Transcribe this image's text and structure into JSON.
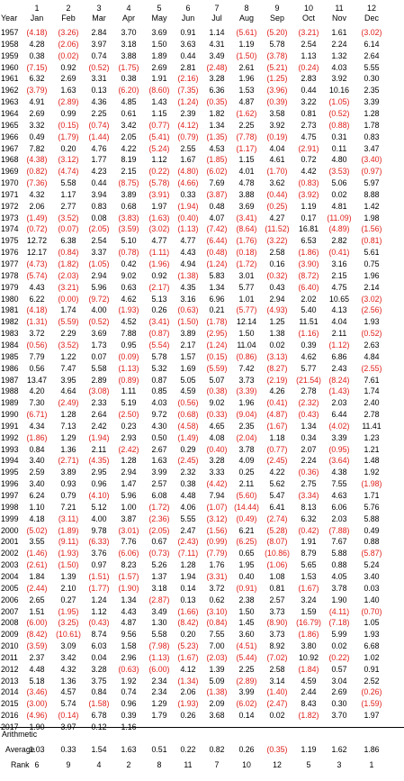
{
  "headers": {
    "year_label": "Year",
    "month_numbers": [
      "1",
      "2",
      "3",
      "4",
      "5",
      "6",
      "7",
      "8",
      "9",
      "10",
      "11",
      "12"
    ],
    "month_names": [
      "Jan",
      "Feb",
      "Mar",
      "Apr",
      "May",
      "Jun",
      "Jul",
      "Aug",
      "Sep",
      "Oct",
      "Nov",
      "Dec"
    ]
  },
  "rows": [
    [
      "1957",
      "(4.18)",
      "(3.26)",
      "2.84",
      "3.70",
      "3.69",
      "0.91",
      "1.14",
      "(5.61)",
      "(5.20)",
      "(3.21)",
      "1.61",
      "(3.02)"
    ],
    [
      "1958",
      "4.28",
      "(2.06)",
      "3.97",
      "3.18",
      "1.50",
      "3.63",
      "4.31",
      "1.19",
      "5.78",
      "2.54",
      "2.24",
      "6.14"
    ],
    [
      "1959",
      "0.38",
      "(0.02)",
      "0.74",
      "3.88",
      "1.89",
      "0.44",
      "3.49",
      "(1.50)",
      "(3.78)",
      "1.13",
      "1.32",
      "2.64"
    ],
    [
      "1960",
      "(7.15)",
      "0.92",
      "(0.52)",
      "(1.75)",
      "2.69",
      "2.81",
      "(2.48)",
      "2.61",
      "(5.21)",
      "(0.24)",
      "4.03",
      "5.55"
    ],
    [
      "1961",
      "6.32",
      "2.69",
      "3.31",
      "0.38",
      "1.91",
      "(2.16)",
      "3.28",
      "1.96",
      "(1.25)",
      "2.83",
      "3.92",
      "0.30"
    ],
    [
      "1962",
      "(3.79)",
      "1.63",
      "0.13",
      "(6.20)",
      "(8.60)",
      "(7.35)",
      "6.36",
      "1.53",
      "(3.96)",
      "0.44",
      "10.16",
      "2.35"
    ],
    [
      "1963",
      "4.91",
      "(2.89)",
      "4.36",
      "4.85",
      "1.43",
      "(1.24)",
      "(0.35)",
      "4.87",
      "(0.39)",
      "3.22",
      "(1.05)",
      "3.39"
    ],
    [
      "1964",
      "2.69",
      "0.99",
      "2.25",
      "0.61",
      "1.15",
      "2.39",
      "1.82",
      "(1.62)",
      "3.58",
      "0.81",
      "(0.52)",
      "1.28"
    ],
    [
      "1965",
      "3.32",
      "(0.15)",
      "(0.74)",
      "3.42",
      "(0.77)",
      "(4.12)",
      "1.34",
      "2.25",
      "3.92",
      "2.73",
      "(0.88)",
      "1.78"
    ],
    [
      "1966",
      "0.49",
      "(1.79)",
      "(1.44)",
      "2.05",
      "(5.41)",
      "(0.79)",
      "(1.35)",
      "(7.78)",
      "(0.19)",
      "4.75",
      "0.31",
      "0.83"
    ],
    [
      "1967",
      "7.82",
      "0.20",
      "4.76",
      "4.22",
      "(5.24)",
      "2.55",
      "4.53",
      "(1.17)",
      "4.04",
      "(2.91)",
      "0.11",
      "3.47"
    ],
    [
      "1968",
      "(4.38)",
      "(3.12)",
      "1.77",
      "8.19",
      "1.12",
      "1.67",
      "(1.85)",
      "1.15",
      "4.61",
      "0.72",
      "4.80",
      "(3.40)"
    ],
    [
      "1969",
      "(0.82)",
      "(4.74)",
      "4.23",
      "2.15",
      "(0.22)",
      "(4.80)",
      "(6.02)",
      "4.01",
      "(1.70)",
      "4.42",
      "(3.53)",
      "(0.97)"
    ],
    [
      "1970",
      "(7.36)",
      "5.58",
      "0.44",
      "(8.75)",
      "(5.78)",
      "(4.66)",
      "7.69",
      "4.78",
      "3.62",
      "(0.83)",
      "5.06",
      "5.97"
    ],
    [
      "1971",
      "4.32",
      "1.17",
      "3.94",
      "3.89",
      "(3.91)",
      "0.33",
      "(3.87)",
      "3.88",
      "(0.44)",
      "(3.92)",
      "0.02",
      "8.88"
    ],
    [
      "1972",
      "2.06",
      "2.77",
      "0.83",
      "0.68",
      "1.97",
      "(1.94)",
      "0.48",
      "3.69",
      "(0.25)",
      "1.19",
      "4.81",
      "1.42"
    ],
    [
      "1973",
      "(1.49)",
      "(3.52)",
      "0.08",
      "(3.83)",
      "(1.63)",
      "(0.40)",
      "4.07",
      "(3.41)",
      "4.27",
      "0.17",
      "(11.09)",
      "1.98"
    ],
    [
      "1974",
      "(0.72)",
      "(0.07)",
      "(2.05)",
      "(3.59)",
      "(3.02)",
      "(1.13)",
      "(7.42)",
      "(8.64)",
      "(11.52)",
      "16.81",
      "(4.89)",
      "(1.56)"
    ],
    [
      "1975",
      "12.72",
      "6.38",
      "2.54",
      "5.10",
      "4.77",
      "4.77",
      "(6.44)",
      "(1.76)",
      "(3.22)",
      "6.53",
      "2.82",
      "(0.81)"
    ],
    [
      "1976",
      "12.17",
      "(0.84)",
      "3.37",
      "(0.78)",
      "(1.11)",
      "4.43",
      "(0.48)",
      "(0.18)",
      "2.58",
      "(1.86)",
      "(0.41)",
      "5.61"
    ],
    [
      "1977",
      "(4.73)",
      "(1.82)",
      "(1.05)",
      "0.42",
      "(1.96)",
      "4.94",
      "(1.24)",
      "(1.72)",
      "0.16",
      "(3.90)",
      "3.16",
      "0.75"
    ],
    [
      "1978",
      "(5.74)",
      "(2.03)",
      "2.94",
      "9.02",
      "0.92",
      "(1.38)",
      "5.83",
      "3.01",
      "(0.32)",
      "(8.72)",
      "2.15",
      "1.96"
    ],
    [
      "1979",
      "4.43",
      "(3.21)",
      "5.96",
      "0.63",
      "(2.17)",
      "4.35",
      "1.34",
      "5.77",
      "0.43",
      "(6.40)",
      "4.75",
      "2.14"
    ],
    [
      "1980",
      "6.22",
      "(0.00)",
      "(9.72)",
      "4.62",
      "5.13",
      "3.16",
      "6.96",
      "1.01",
      "2.94",
      "2.02",
      "10.65",
      "(3.02)"
    ],
    [
      "1981",
      "(4.18)",
      "1.74",
      "4.00",
      "(1.93)",
      "0.26",
      "(0.63)",
      "0.21",
      "(5.77)",
      "(4.93)",
      "5.40",
      "4.13",
      "(2.56)"
    ],
    [
      "1982",
      "(1.31)",
      "(5.59)",
      "(0.52)",
      "4.52",
      "(3.41)",
      "(1.50)",
      "(1.78)",
      "12.14",
      "1.25",
      "11.51",
      "4.04",
      "1.93"
    ],
    [
      "1983",
      "3.72",
      "2.29",
      "3.69",
      "7.88",
      "(0.87)",
      "3.89",
      "(2.95)",
      "1.50",
      "1.38",
      "(1.16)",
      "2.11",
      "(0.52)"
    ],
    [
      "1984",
      "(0.56)",
      "(3.52)",
      "1.73",
      "0.95",
      "(5.54)",
      "2.17",
      "(1.24)",
      "11.04",
      "0.02",
      "0.39",
      "(1.12)",
      "2.63"
    ],
    [
      "1985",
      "7.79",
      "1.22",
      "0.07",
      "(0.09)",
      "5.78",
      "1.57",
      "(0.15)",
      "(0.86)",
      "(3.13)",
      "4.62",
      "6.86",
      "4.84"
    ],
    [
      "1986",
      "0.56",
      "7.47",
      "5.58",
      "(1.13)",
      "5.32",
      "1.69",
      "(5.59)",
      "7.42",
      "(8.27)",
      "5.77",
      "2.43",
      "(2.55)"
    ],
    [
      "1987",
      "13.47",
      "3.95",
      "2.89",
      "(0.89)",
      "0.87",
      "5.05",
      "5.07",
      "3.73",
      "(2.19)",
      "(21.54)",
      "(8.24)",
      "7.61"
    ],
    [
      "1988",
      "4.20",
      "4.64",
      "(3.08)",
      "1.11",
      "0.85",
      "4.59",
      "(0.38)",
      "(3.39)",
      "4.26",
      "2.78",
      "(1.43)",
      "1.74"
    ],
    [
      "1989",
      "7.30",
      "(2.49)",
      "2.33",
      "5.19",
      "4.03",
      "(0.56)",
      "9.02",
      "1.96",
      "(0.41)",
      "(2.32)",
      "2.03",
      "2.40"
    ],
    [
      "1990",
      "(6.71)",
      "1.28",
      "2.64",
      "(2.50)",
      "9.72",
      "(0.68)",
      "(0.33)",
      "(9.04)",
      "(4.87)",
      "(0.43)",
      "6.44",
      "2.78"
    ],
    [
      "1991",
      "4.34",
      "7.13",
      "2.42",
      "0.23",
      "4.30",
      "(4.58)",
      "4.65",
      "2.35",
      "(1.67)",
      "1.34",
      "(4.02)",
      "11.41"
    ],
    [
      "1992",
      "(1.86)",
      "1.29",
      "(1.94)",
      "2.93",
      "0.50",
      "(1.49)",
      "4.08",
      "(2.04)",
      "1.18",
      "0.34",
      "3.39",
      "1.23"
    ],
    [
      "1993",
      "0.84",
      "1.36",
      "2.11",
      "(2.42)",
      "2.67",
      "0.29",
      "(0.40)",
      "3.78",
      "(0.77)",
      "2.07",
      "(0.95)",
      "1.21"
    ],
    [
      "1994",
      "3.40",
      "(2.71)",
      "(4.35)",
      "1.28",
      "1.63",
      "(2.45)",
      "3.28",
      "4.09",
      "(2.45)",
      "2.24",
      "(3.64)",
      "1.48"
    ],
    [
      "1995",
      "2.59",
      "3.89",
      "2.95",
      "2.94",
      "3.99",
      "2.32",
      "3.33",
      "0.25",
      "4.22",
      "(0.36)",
      "4.38",
      "1.92"
    ],
    [
      "1996",
      "3.40",
      "0.93",
      "0.96",
      "1.47",
      "2.57",
      "0.38",
      "(4.42)",
      "2.11",
      "5.62",
      "2.75",
      "7.55",
      "(1.98)"
    ],
    [
      "1997",
      "6.24",
      "0.79",
      "(4.10)",
      "5.96",
      "6.08",
      "4.48",
      "7.94",
      "(5.60)",
      "5.47",
      "(3.34)",
      "4.63",
      "1.71"
    ],
    [
      "1998",
      "1.10",
      "7.21",
      "5.12",
      "1.00",
      "(1.72)",
      "4.06",
      "(1.07)",
      "(14.44)",
      "6.41",
      "8.13",
      "6.06",
      "5.76"
    ],
    [
      "1999",
      "4.18",
      "(3.11)",
      "4.00",
      "3.87",
      "(2.36)",
      "5.55",
      "(3.12)",
      "(0.49)",
      "(2.74)",
      "6.32",
      "2.03",
      "5.88"
    ],
    [
      "2000",
      "(5.02)",
      "(1.89)",
      "9.78",
      "(3.01)",
      "(2.05)",
      "2.47",
      "(1.56)",
      "6.21",
      "(5.28)",
      "(0.42)",
      "(7.88)",
      "0.49"
    ],
    [
      "2001",
      "3.55",
      "(9.11)",
      "(6.33)",
      "7.76",
      "0.67",
      "(2.43)",
      "(0.99)",
      "(6.25)",
      "(8.07)",
      "1.91",
      "7.67",
      "0.88"
    ],
    [
      "2002",
      "(1.46)",
      "(1.93)",
      "3.76",
      "(6.06)",
      "(0.73)",
      "(7.11)",
      "(7.79)",
      "0.65",
      "(10.86)",
      "8.79",
      "5.88",
      "(5.87)"
    ],
    [
      "2003",
      "(2.61)",
      "(1.50)",
      "0.97",
      "8.23",
      "5.26",
      "1.28",
      "1.76",
      "1.95",
      "(1.06)",
      "5.65",
      "0.88",
      "5.24"
    ],
    [
      "2004",
      "1.84",
      "1.39",
      "(1.51)",
      "(1.57)",
      "1.37",
      "1.94",
      "(3.31)",
      "0.40",
      "1.08",
      "1.53",
      "4.05",
      "3.40"
    ],
    [
      "2005",
      "(2.44)",
      "2.10",
      "(1.77)",
      "(1.90)",
      "3.18",
      "0.14",
      "3.72",
      "(0.91)",
      "0.81",
      "(1.67)",
      "3.78",
      "0.03"
    ],
    [
      "2006",
      "2.65",
      "0.27",
      "1.24",
      "1.34",
      "(2.87)",
      "0.13",
      "0.62",
      "2.38",
      "2.57",
      "3.24",
      "1.90",
      "1.40"
    ],
    [
      "2007",
      "1.51",
      "(1.95)",
      "1.12",
      "4.43",
      "3.49",
      "(1.66)",
      "(3.10)",
      "1.50",
      "3.73",
      "1.59",
      "(4.11)",
      "(0.70)"
    ],
    [
      "2008",
      "(6.00)",
      "(3.25)",
      "(0.43)",
      "4.87",
      "1.30",
      "(8.42)",
      "(0.84)",
      "1.45",
      "(8.90)",
      "(16.79)",
      "(7.18)",
      "1.05"
    ],
    [
      "2009",
      "(8.42)",
      "(10.61)",
      "8.74",
      "9.56",
      "5.58",
      "0.20",
      "7.55",
      "3.60",
      "3.73",
      "(1.86)",
      "5.99",
      "1.93"
    ],
    [
      "2010",
      "(3.59)",
      "3.09",
      "6.03",
      "1.58",
      "(7.98)",
      "(5.23)",
      "7.00",
      "(4.51)",
      "8.92",
      "3.80",
      "0.02",
      "6.68"
    ],
    [
      "2011",
      "2.37",
      "3.42",
      "0.04",
      "2.96",
      "(1.13)",
      "(1.67)",
      "(2.03)",
      "(5.44)",
      "(7.02)",
      "10.92",
      "(0.22)",
      "1.02"
    ],
    [
      "2012",
      "4.48",
      "4.32",
      "3.28",
      "(0.63)",
      "(6.00)",
      "4.12",
      "1.39",
      "2.25",
      "2.58",
      "(1.84)",
      "0.57",
      "0.91"
    ],
    [
      "2013",
      "5.18",
      "1.36",
      "3.75",
      "1.92",
      "2.34",
      "(1.34)",
      "5.09",
      "(2.89)",
      "3.14",
      "4.59",
      "3.04",
      "2.52"
    ],
    [
      "2014",
      "(3.46)",
      "4.57",
      "0.84",
      "0.74",
      "2.34",
      "2.06",
      "(1.38)",
      "3.99",
      "(1.40)",
      "2.44",
      "2.69",
      "(0.26)"
    ],
    [
      "2015",
      "(3.00)",
      "5.74",
      "(1.58)",
      "0.96",
      "1.29",
      "(1.93)",
      "2.09",
      "(6.02)",
      "(2.47)",
      "8.43",
      "0.30",
      "(1.59)"
    ],
    [
      "2016",
      "(4.96)",
      "(0.14)",
      "6.78",
      "0.39",
      "1.79",
      "0.26",
      "3.68",
      "0.14",
      "0.02",
      "(1.82)",
      "3.70",
      "1.97"
    ],
    [
      "2017",
      "1.90",
      "3.97",
      "0.12",
      "1.16",
      "",
      "",
      "",
      "",
      "",
      "",
      "",
      ""
    ]
  ],
  "summary": {
    "label_line1": "Arithmetic",
    "average_label": "Average",
    "rank_label": "Rank",
    "average": [
      "1.03",
      "0.33",
      "1.54",
      "1.63",
      "0.51",
      "0.22",
      "0.82",
      "0.26",
      "(0.35)",
      "1.19",
      "1.62",
      "1.86"
    ],
    "rank": [
      "6",
      "9",
      "4",
      "2",
      "8",
      "11",
      "7",
      "10",
      "12",
      "5",
      "3",
      "1"
    ]
  },
  "colors": {
    "negative": "#e0201b",
    "text": "#000000"
  }
}
